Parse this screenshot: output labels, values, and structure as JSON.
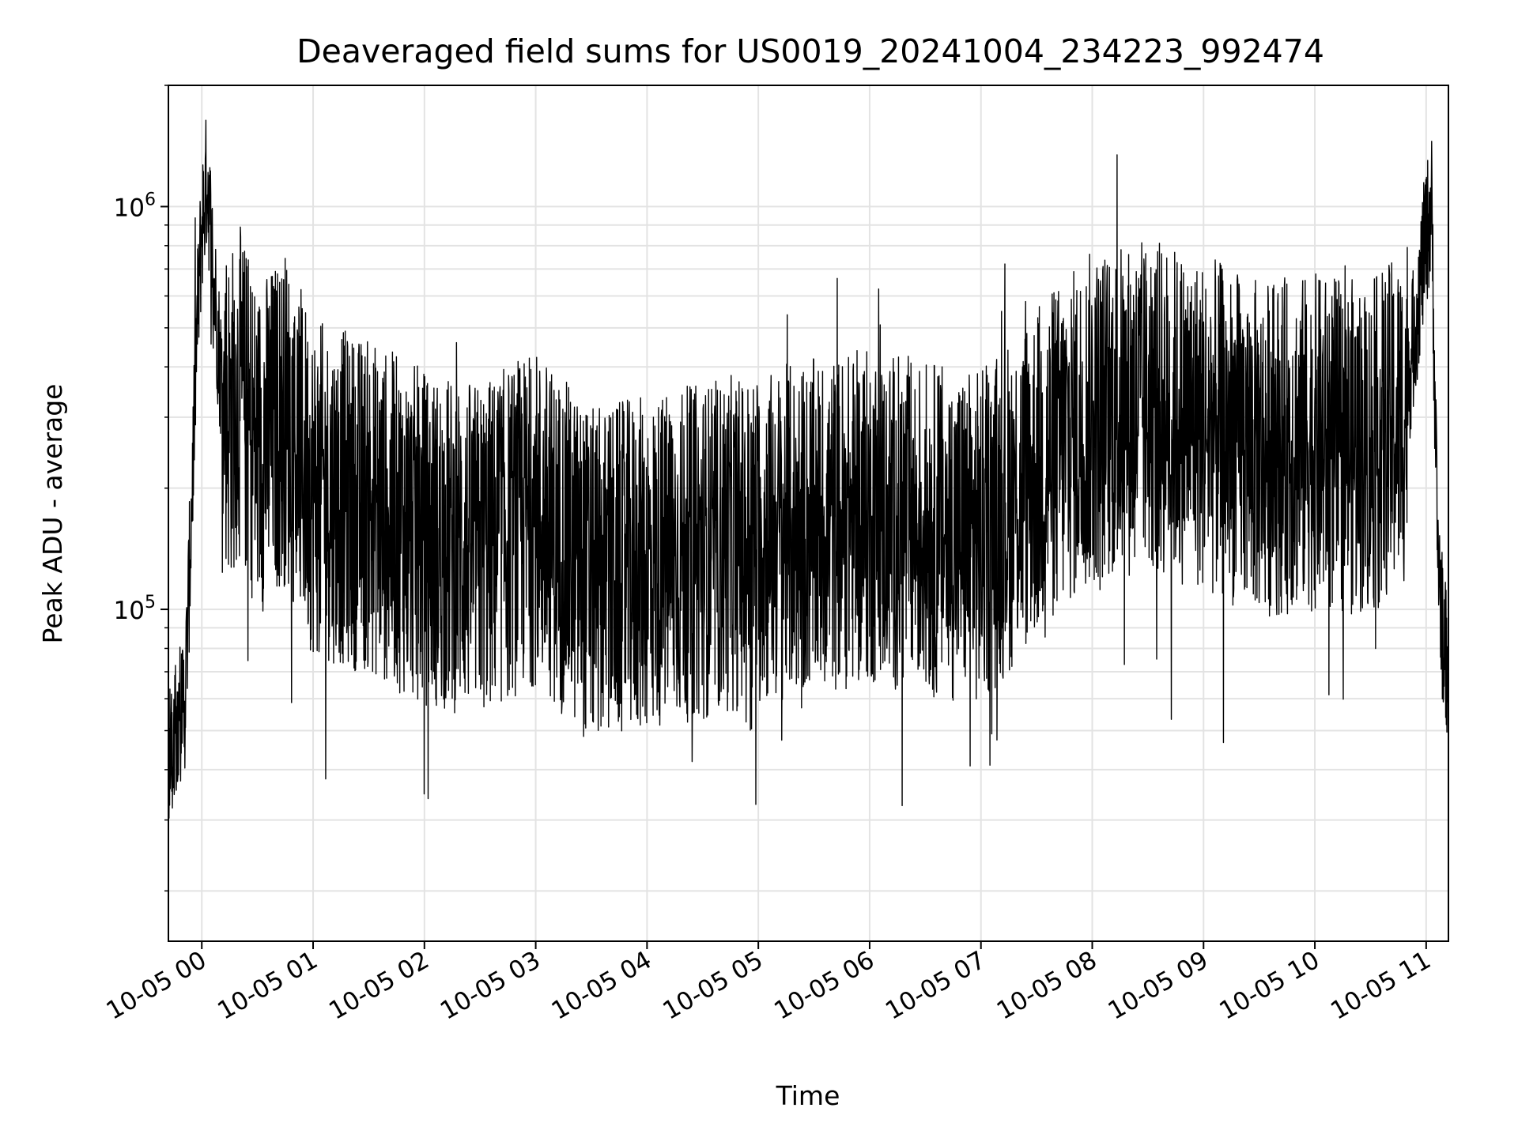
{
  "chart_data": {
    "type": "line",
    "title": "Deaveraged field sums for US0019_20241004_234223_992474",
    "xlabel": "Time",
    "ylabel": "Peak ADU - average",
    "yscale": "log",
    "xlim": [
      "2024-10-04 23:42",
      "2024-10-05 11:12"
    ],
    "ylim": [
      15000,
      2000000
    ],
    "x_tick_labels": [
      "10-05 00",
      "10-05 01",
      "10-05 02",
      "10-05 03",
      "10-05 04",
      "10-05 05",
      "10-05 06",
      "10-05 07",
      "10-05 08",
      "10-05 09",
      "10-05 10",
      "10-05 11"
    ],
    "y_ticks": [
      {
        "value": 100000,
        "base": "10",
        "exponent": "5"
      },
      {
        "value": 1000000,
        "base": "10",
        "exponent": "6"
      }
    ],
    "grid": true,
    "line_color": "#000000",
    "series": [
      {
        "name": "",
        "x": [
          "2024-10-04 23:42",
          "2024-10-04 23:45",
          "2024-10-04 23:48",
          "2024-10-04 23:51",
          "2024-10-04 23:54",
          "2024-10-04 23:57",
          "2024-10-05 00:00",
          "2024-10-05 00:03",
          "2024-10-05 00:06",
          "2024-10-05 00:10",
          "2024-10-05 00:15",
          "2024-10-05 00:20",
          "2024-10-05 00:30",
          "2024-10-05 00:45",
          "2024-10-05 01:00",
          "2024-10-05 01:30",
          "2024-10-05 02:00",
          "2024-10-05 02:30",
          "2024-10-05 03:00",
          "2024-10-05 03:30",
          "2024-10-05 04:00",
          "2024-10-05 04:30",
          "2024-10-05 05:00",
          "2024-10-05 05:30",
          "2024-10-05 06:00",
          "2024-10-05 06:30",
          "2024-10-05 07:00",
          "2024-10-05 07:30",
          "2024-10-05 08:00",
          "2024-10-05 08:30",
          "2024-10-05 09:00",
          "2024-10-05 09:30",
          "2024-10-05 10:00",
          "2024-10-05 10:30",
          "2024-10-05 10:48",
          "2024-10-05 10:55",
          "2024-10-05 11:00",
          "2024-10-05 11:03",
          "2024-10-05 11:06",
          "2024-10-05 11:09",
          "2024-10-05 11:12"
        ],
        "y": [
          40000,
          52000,
          55000,
          60000,
          150000,
          450000,
          900000,
          1200000,
          700000,
          400000,
          300000,
          350000,
          250000,
          300000,
          200000,
          180000,
          150000,
          140000,
          170000,
          120000,
          130000,
          140000,
          150000,
          160000,
          170000,
          160000,
          150000,
          220000,
          300000,
          320000,
          290000,
          250000,
          260000,
          250000,
          300000,
          550000,
          850000,
          1000000,
          150000,
          85000,
          70000
        ]
      }
    ]
  }
}
